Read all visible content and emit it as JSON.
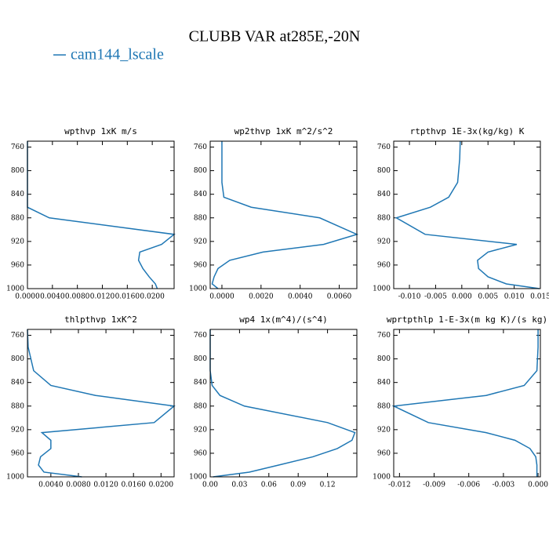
{
  "figure": {
    "title": "CLUBB VAR at285E,-20N",
    "legend": "cam144_lscale",
    "color": "#1f77b4"
  },
  "chart_data": [
    {
      "type": "line",
      "title": "wpthvp  1xK m/s",
      "levels": [
        750,
        780,
        820,
        845,
        862,
        880,
        908,
        925,
        938,
        952,
        966,
        980,
        992,
        1000
      ],
      "series": [
        {
          "color": "#1f77b4",
          "values": [
            0,
            0,
            0,
            0,
            0,
            0.0035,
            0.0235,
            0.0215,
            0.018,
            0.0178,
            0.0185,
            0.0195,
            0.0205,
            0.0208
          ]
        }
      ],
      "xlim": [
        0,
        0.0235
      ],
      "ylim": [
        1000,
        750
      ],
      "xticks": [
        {
          "value": 0,
          "label": "0.0000"
        },
        {
          "value": 0.004,
          "label": "0.0040"
        },
        {
          "value": 0.008,
          "label": "0.0080"
        },
        {
          "value": 0.012,
          "label": "0.0120"
        },
        {
          "value": 0.016,
          "label": "0.0160"
        },
        {
          "value": 0.02,
          "label": "0.0200"
        }
      ],
      "yticks": [
        760,
        800,
        840,
        880,
        920,
        960,
        1000
      ]
    },
    {
      "type": "line",
      "title": "wp2thvp  1xK m^2/s^2",
      "levels": [
        750,
        780,
        820,
        845,
        862,
        880,
        908,
        925,
        938,
        952,
        966,
        980,
        992,
        1000
      ],
      "series": [
        {
          "color": "#1f77b4",
          "values": [
            0,
            0,
            0,
            0.0001,
            0.0015,
            0.005,
            0.0069,
            0.0052,
            0.0021,
            0.0004,
            -0.0002,
            -0.0004,
            -0.0005,
            -0.0002
          ]
        }
      ],
      "xlim": [
        -0.0006,
        0.0069
      ],
      "ylim": [
        1000,
        750
      ],
      "xticks": [
        {
          "value": 0,
          "label": "0.0000"
        },
        {
          "value": 0.002,
          "label": "0.0020"
        },
        {
          "value": 0.004,
          "label": "0.0040"
        },
        {
          "value": 0.006,
          "label": "0.0060"
        }
      ],
      "yticks": [
        760,
        800,
        840,
        880,
        920,
        960,
        1000
      ]
    },
    {
      "type": "line",
      "title": "rtpthvp  1E-3x(kg/kg) K",
      "levels": [
        750,
        780,
        820,
        845,
        862,
        880,
        908,
        925,
        938,
        952,
        966,
        980,
        992,
        1000
      ],
      "series": [
        {
          "color": "#1f77b4",
          "values": [
            -0.0003,
            -0.0004,
            -0.0008,
            -0.0025,
            -0.006,
            -0.0125,
            -0.007,
            0.0105,
            0.005,
            0.003,
            0.0032,
            0.005,
            0.0085,
            0.0148
          ]
        }
      ],
      "xlim": [
        -0.013,
        0.015
      ],
      "ylim": [
        1000,
        750
      ],
      "xticks": [
        {
          "value": -0.01,
          "label": "-0.010"
        },
        {
          "value": -0.005,
          "label": "-0.005"
        },
        {
          "value": 0,
          "label": "0.000"
        },
        {
          "value": 0.005,
          "label": "0.005"
        },
        {
          "value": 0.01,
          "label": "0.010"
        },
        {
          "value": 0.015,
          "label": "0.015"
        }
      ],
      "yticks": [
        760,
        800,
        840,
        880,
        920,
        960,
        1000
      ]
    },
    {
      "type": "line",
      "title": "thlpthvp  1xK^2",
      "levels": [
        750,
        780,
        820,
        845,
        862,
        880,
        908,
        925,
        938,
        952,
        966,
        980,
        992,
        1000
      ],
      "series": [
        {
          "color": "#1f77b4",
          "values": [
            0.0006,
            0.0007,
            0.0015,
            0.004,
            0.0105,
            0.0219,
            0.019,
            0.0027,
            0.004,
            0.004,
            0.0025,
            0.0022,
            0.003,
            0.0085
          ]
        }
      ],
      "xlim": [
        0.0006,
        0.0219
      ],
      "ylim": [
        1000,
        750
      ],
      "xticks": [
        {
          "value": 0.004,
          "label": "0.0040"
        },
        {
          "value": 0.008,
          "label": "0.0080"
        },
        {
          "value": 0.012,
          "label": "0.0120"
        },
        {
          "value": 0.016,
          "label": "0.0160"
        },
        {
          "value": 0.02,
          "label": "0.0200"
        }
      ],
      "yticks": [
        760,
        800,
        840,
        880,
        920,
        960,
        1000
      ]
    },
    {
      "type": "line",
      "title": "wp4  1x(m^4)/(s^4)",
      "levels": [
        750,
        780,
        820,
        845,
        862,
        880,
        908,
        925,
        938,
        952,
        966,
        980,
        992,
        1000
      ],
      "series": [
        {
          "color": "#1f77b4",
          "values": [
            0,
            0,
            0,
            0.002,
            0.01,
            0.035,
            0.12,
            0.148,
            0.145,
            0.13,
            0.105,
            0.07,
            0.04,
            0.003
          ]
        }
      ],
      "xlim": [
        0,
        0.15
      ],
      "ylim": [
        1000,
        750
      ],
      "xticks": [
        {
          "value": 0,
          "label": "0.00"
        },
        {
          "value": 0.03,
          "label": "0.03"
        },
        {
          "value": 0.06,
          "label": "0.06"
        },
        {
          "value": 0.09,
          "label": "0.09"
        },
        {
          "value": 0.12,
          "label": "0.12"
        }
      ],
      "yticks": [
        760,
        800,
        840,
        880,
        920,
        960,
        1000
      ]
    },
    {
      "type": "line",
      "title": "wprtpthlp  1-E-3x(m kg K)/(s kg)",
      "levels": [
        750,
        780,
        820,
        845,
        862,
        880,
        908,
        925,
        938,
        952,
        966,
        980,
        992,
        1000
      ],
      "series": [
        {
          "color": "#1f77b4",
          "values": [
            0,
            0,
            -0.0001,
            -0.0012,
            -0.0045,
            -0.0125,
            -0.0095,
            -0.0045,
            -0.002,
            -0.0007,
            -0.0002,
            -0.0001,
            -0.0001,
            -0.0001
          ]
        }
      ],
      "xlim": [
        -0.0125,
        0.0002
      ],
      "ylim": [
        1000,
        750
      ],
      "xticks": [
        -0.012,
        -0.009,
        -0.006,
        -0.003,
        {
          "value": 0,
          "label": "0.000"
        }
      ],
      "yticks": [
        760,
        800,
        840,
        880,
        920,
        960,
        1000
      ]
    }
  ]
}
